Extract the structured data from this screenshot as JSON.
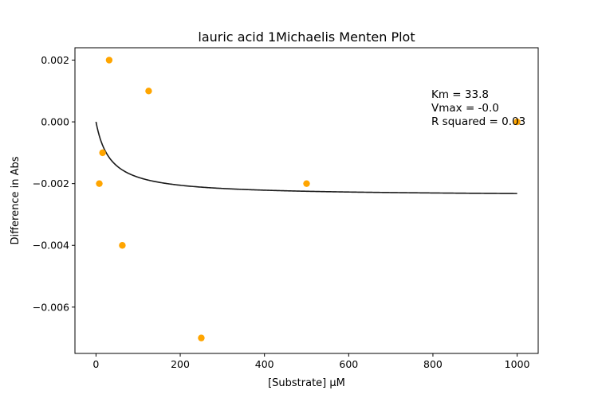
{
  "chart_data": {
    "type": "scatter",
    "title": "lauric acid 1Michaelis Menten Plot",
    "xlabel": "[Substrate] μM",
    "ylabel": "Difference in Abs",
    "xlim": [
      -50,
      1050
    ],
    "ylim": [
      -0.0075,
      0.0024
    ],
    "xticks": [
      0,
      200,
      400,
      600,
      800,
      1000
    ],
    "xtick_labels": [
      "0",
      "200",
      "400",
      "600",
      "800",
      "1000"
    ],
    "yticks": [
      0.002,
      0.0,
      -0.002,
      -0.004,
      -0.006
    ],
    "ytick_labels": [
      "0.002",
      "0.000",
      "−0.002",
      "−0.004",
      "−0.006"
    ],
    "grid": false,
    "points": {
      "x": [
        7.8,
        15.6,
        31.25,
        62.5,
        125,
        250,
        500,
        1000
      ],
      "y": [
        -0.002,
        -0.001,
        0.002,
        -0.004,
        0.001,
        -0.007,
        -0.002,
        0.0
      ],
      "color": "#FFA500"
    },
    "fit": {
      "model": "michaelis-menten",
      "Km": 33.8,
      "Vmax": -0.0024,
      "x_range": [
        0,
        1000
      ],
      "color": "#1a1a1a"
    },
    "annotations": [
      "Km = 33.8",
      "Vmax = -0.0",
      "R squared = 0.03"
    ]
  }
}
